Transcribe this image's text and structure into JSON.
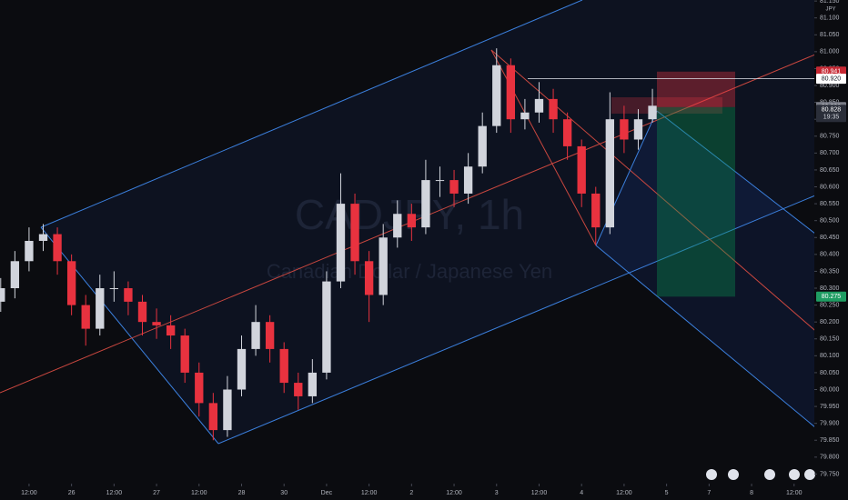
{
  "chart_data": {
    "type": "candlestick",
    "title": "CADJPY, 1h",
    "subtitle": "Canadian Dollar / Japanese Yen",
    "currency": "JPY",
    "x": [
      -8,
      -4,
      0,
      4,
      8,
      12,
      16,
      20,
      24,
      28,
      32,
      36,
      40,
      44,
      48,
      52,
      56,
      60,
      64,
      68,
      72,
      76,
      80,
      84,
      88,
      92,
      96,
      100,
      104,
      108,
      112,
      116,
      120,
      124,
      128,
      132,
      136,
      140,
      144,
      148,
      152,
      156,
      160,
      164,
      168,
      172,
      176
    ],
    "open": [
      80.26,
      80.3,
      80.38,
      80.44,
      80.46,
      80.38,
      80.25,
      80.18,
      80.3,
      80.3,
      80.26,
      80.2,
      80.19,
      80.16,
      80.05,
      79.96,
      79.88,
      80.0,
      80.12,
      80.2,
      80.12,
      80.02,
      79.98,
      80.05,
      80.32,
      80.55,
      80.38,
      80.28,
      80.45,
      80.52,
      80.48,
      80.62,
      80.62,
      80.58,
      80.66,
      80.78,
      80.96,
      80.8,
      80.82,
      80.86,
      80.8,
      80.72,
      80.58,
      80.48,
      80.8,
      80.74,
      80.8
    ],
    "high": [
      80.33,
      80.41,
      80.48,
      80.49,
      80.48,
      80.4,
      80.28,
      80.34,
      80.35,
      80.32,
      80.28,
      80.24,
      80.22,
      80.18,
      80.08,
      79.99,
      80.04,
      80.16,
      80.25,
      80.22,
      80.14,
      80.05,
      80.09,
      80.35,
      80.64,
      80.58,
      80.41,
      80.49,
      80.56,
      80.55,
      80.68,
      80.66,
      80.65,
      80.7,
      80.82,
      81.01,
      80.98,
      80.86,
      80.91,
      80.89,
      80.82,
      80.74,
      80.6,
      80.88,
      80.84,
      80.83,
      80.89
    ],
    "low": [
      80.23,
      80.27,
      80.35,
      80.41,
      80.34,
      80.22,
      80.13,
      80.16,
      80.26,
      80.22,
      80.16,
      80.15,
      80.12,
      80.02,
      79.92,
      79.85,
      79.86,
      79.98,
      80.1,
      80.08,
      79.99,
      79.94,
      79.96,
      80.03,
      80.3,
      80.34,
      80.2,
      80.25,
      80.42,
      80.44,
      80.46,
      80.57,
      80.54,
      80.55,
      80.64,
      80.76,
      80.76,
      80.77,
      80.79,
      80.76,
      80.68,
      80.54,
      80.43,
      80.46,
      80.7,
      80.71,
      80.79
    ],
    "close": [
      80.3,
      80.38,
      80.44,
      80.46,
      80.38,
      80.25,
      80.18,
      80.3,
      80.3,
      80.26,
      80.2,
      80.19,
      80.16,
      80.05,
      79.96,
      79.88,
      80.0,
      80.12,
      80.2,
      80.12,
      80.02,
      79.98,
      80.05,
      80.32,
      80.55,
      80.38,
      80.28,
      80.45,
      80.52,
      80.48,
      80.62,
      80.62,
      80.58,
      80.66,
      80.78,
      80.96,
      80.8,
      80.82,
      80.86,
      80.8,
      80.72,
      80.58,
      80.48,
      80.8,
      80.74,
      80.8,
      80.84
    ],
    "up_color": "#d1d4dc",
    "down_color": "#e8323f",
    "xlim": [
      -8.2,
      221.2
    ],
    "ylim": [
      79.7,
      81.153
    ],
    "xticks": [
      {
        "value": 0,
        "label": "12:00"
      },
      {
        "value": 12,
        "label": "26"
      },
      {
        "value": 24,
        "label": "12:00"
      },
      {
        "value": 36,
        "label": "27"
      },
      {
        "value": 48,
        "label": "12:00"
      },
      {
        "value": 60,
        "label": "28"
      },
      {
        "value": 72,
        "label": "30"
      },
      {
        "value": 84,
        "label": "Dec"
      },
      {
        "value": 96,
        "label": "12:00"
      },
      {
        "value": 108,
        "label": "2"
      },
      {
        "value": 120,
        "label": "12:00"
      },
      {
        "value": 132,
        "label": "3"
      },
      {
        "value": 144,
        "label": "12:00"
      },
      {
        "value": 156,
        "label": "4"
      },
      {
        "value": 168,
        "label": "12:00"
      },
      {
        "value": 180,
        "label": "5"
      },
      {
        "value": 192,
        "label": "7"
      },
      {
        "value": 204,
        "label": "8"
      },
      {
        "value": 216,
        "label": "12:00"
      }
    ],
    "yticks": [
      {
        "value": 79.75,
        "label": "79.750"
      },
      {
        "value": 79.8,
        "label": "79.800"
      },
      {
        "value": 79.85,
        "label": "79.850"
      },
      {
        "value": 79.9,
        "label": "79.900"
      },
      {
        "value": 79.95,
        "label": "79.950"
      },
      {
        "value": 80,
        "label": "80.000"
      },
      {
        "value": 80.05,
        "label": "80.050"
      },
      {
        "value": 80.1,
        "label": "80.100"
      },
      {
        "value": 80.15,
        "label": "80.150"
      },
      {
        "value": 80.2,
        "label": "80.200"
      },
      {
        "value": 80.25,
        "label": "80.250"
      },
      {
        "value": 80.3,
        "label": "80.300"
      },
      {
        "value": 80.35,
        "label": "80.350"
      },
      {
        "value": 80.4,
        "label": "80.400"
      },
      {
        "value": 80.45,
        "label": "80.450"
      },
      {
        "value": 80.5,
        "label": "80.500"
      },
      {
        "value": 80.55,
        "label": "80.550"
      },
      {
        "value": 80.6,
        "label": "80.600"
      },
      {
        "value": 80.65,
        "label": "80.650"
      },
      {
        "value": 80.7,
        "label": "80.700"
      },
      {
        "value": 80.75,
        "label": "80.750"
      },
      {
        "value": 80.8,
        "label": "80.800"
      },
      {
        "value": 80.85,
        "label": "80.850"
      },
      {
        "value": 80.9,
        "label": "80.900"
      },
      {
        "value": 80.95,
        "label": "80.950"
      },
      {
        "value": 81,
        "label": "81.000"
      },
      {
        "value": 81.05,
        "label": "81.050"
      },
      {
        "value": 81.1,
        "label": "81.100"
      },
      {
        "value": 81.15,
        "label": "81.150"
      }
    ],
    "price_tags": [
      {
        "value": 80.941,
        "label": "80.941",
        "color": "#c62833"
      },
      {
        "value": 80.92,
        "label": "80.920",
        "color": "#ffffff"
      },
      {
        "value": 80.836,
        "label": "80.836",
        "color": "#7a7d87"
      },
      {
        "value": 80.828,
        "label": "80.828",
        "color": "#2a2e39"
      },
      {
        "value": 80.275,
        "label": "80.275",
        "color": "#1f9d63"
      }
    ],
    "countdown": "19:35",
    "grid": false
  }
}
